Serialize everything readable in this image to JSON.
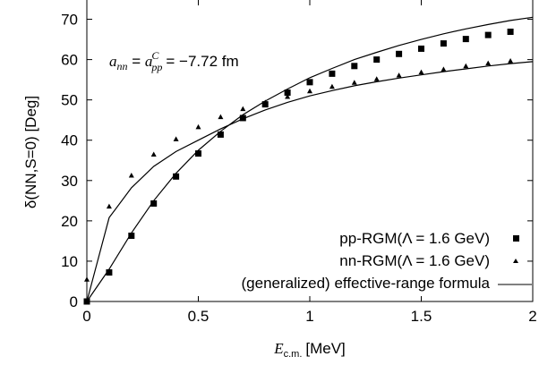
{
  "chart_data": {
    "type": "scatter",
    "xlabel_var": "E",
    "xlabel_sub": "c.m.",
    "xlabel_unit": "[MeV]",
    "ylabel": "δ(NN,S=0)  [Deg]",
    "xlim": [
      0,
      2
    ],
    "ylim": [
      0,
      75
    ],
    "x_ticks": [
      0,
      0.5,
      1,
      1.5,
      2
    ],
    "x_tick_labels": [
      "0",
      "0.5",
      "1",
      "1.5",
      "2"
    ],
    "y_ticks": [
      0,
      10,
      20,
      30,
      40,
      50,
      60,
      70
    ],
    "y_tick_labels": [
      "0",
      "10",
      "20",
      "30",
      "40",
      "50",
      "60",
      "70"
    ],
    "annotation": {
      "lhs_var": "a",
      "lhs_sub": "nn",
      "mid_sub": "pp",
      "mid_sup": "C",
      "rhs": "= −7.72 fm"
    },
    "legend_position": "bottom-right",
    "series": [
      {
        "name": "pp-RGM(Λ = 1.6 GeV)",
        "marker": "square",
        "x": [
          0,
          0.1,
          0.2,
          0.3,
          0.4,
          0.5,
          0.6,
          0.7,
          0.8,
          0.9,
          1.0,
          1.1,
          1.2,
          1.3,
          1.4,
          1.5,
          1.6,
          1.7,
          1.8,
          1.9
        ],
        "y": [
          0,
          7.2,
          16.3,
          24.3,
          31.0,
          36.7,
          41.4,
          45.5,
          48.9,
          51.8,
          54.4,
          56.5,
          58.4,
          60.0,
          61.4,
          62.7,
          64.0,
          65.1,
          66.1,
          66.9
        ]
      },
      {
        "name": "nn-RGM(Λ = 1.6 GeV)",
        "marker": "triangle",
        "x": [
          0,
          0.1,
          0.2,
          0.3,
          0.4,
          0.5,
          0.6,
          0.7,
          0.8,
          0.9,
          1.0,
          1.1,
          1.2,
          1.3,
          1.4,
          1.5,
          1.6,
          1.7,
          1.8,
          1.9
        ],
        "y": [
          5.5,
          23.6,
          31.3,
          36.5,
          40.3,
          43.3,
          45.8,
          47.8,
          49.4,
          50.8,
          52.2,
          53.3,
          54.3,
          55.2,
          56.1,
          56.9,
          57.6,
          58.4,
          59.1,
          59.7
        ]
      },
      {
        "name": "(generalized) effective-range formula",
        "marker": "line",
        "curves": [
          {
            "x": [
              0,
              0.1,
              0.2,
              0.3,
              0.4,
              0.5,
              0.6,
              0.7,
              0.8,
              0.9,
              1.0,
              1.1,
              1.2,
              1.3,
              1.4,
              1.5,
              1.6,
              1.7,
              1.8,
              1.9,
              2.0
            ],
            "y": [
              0,
              8.0,
              17.0,
              25.0,
              31.8,
              37.5,
              42.2,
              46.3,
              49.7,
              52.7,
              55.5,
              57.8,
              60.0,
              61.8,
              63.5,
              65.0,
              66.4,
              67.6,
              68.7,
              69.7,
              70.5
            ]
          },
          {
            "x": [
              0,
              0.1,
              0.2,
              0.3,
              0.4,
              0.5,
              0.6,
              0.7,
              0.8,
              0.9,
              1.0,
              1.1,
              1.2,
              1.3,
              1.4,
              1.5,
              1.6,
              1.7,
              1.8,
              1.9,
              2.0
            ],
            "y": [
              0,
              20.8,
              28.2,
              33.5,
              37.2,
              40.0,
              42.8,
              45.3,
              47.5,
              49.4,
              51.0,
              52.3,
              53.5,
              54.5,
              55.4,
              56.2,
              57.0,
              57.7,
              58.4,
              59.0,
              59.5
            ]
          }
        ]
      }
    ]
  }
}
